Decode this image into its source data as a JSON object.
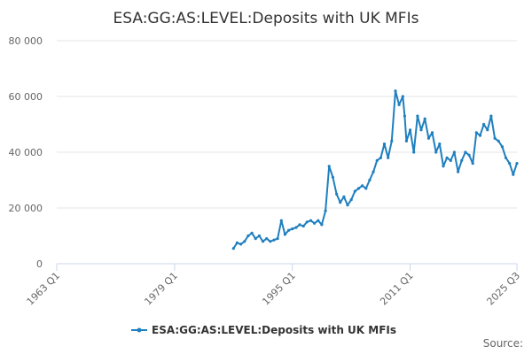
{
  "chart_data": {
    "type": "line",
    "title": "ESA:GG:AS:LEVEL:Deposits with UK MFIs",
    "xlabel": "",
    "ylabel": "",
    "x_range": [
      "1963 Q1",
      "2025 Q3"
    ],
    "ylim": [
      0,
      80000
    ],
    "y_ticks": [
      0,
      20000,
      40000,
      60000,
      80000
    ],
    "y_tick_labels": [
      "0",
      "20 000",
      "40 000",
      "60 000",
      "80 000"
    ],
    "x_tick_labels": [
      "1963 Q1",
      "1979 Q1",
      "1995 Q1",
      "2011 Q1",
      "2025 Q3"
    ],
    "grid": "horizontal",
    "legend_position": "bottom",
    "series": [
      {
        "name": "ESA:GG:AS:LEVEL:Deposits with UK MFIs",
        "color": "#1f7fbf",
        "x": [
          "1987 Q1",
          "1987 Q3",
          "1988 Q1",
          "1988 Q3",
          "1989 Q1",
          "1989 Q3",
          "1990 Q1",
          "1990 Q3",
          "1991 Q1",
          "1991 Q3",
          "1992 Q1",
          "1992 Q3",
          "1993 Q1",
          "1993 Q3",
          "1994 Q1",
          "1994 Q3",
          "1995 Q1",
          "1995 Q3",
          "1996 Q1",
          "1996 Q3",
          "1997 Q1",
          "1997 Q3",
          "1998 Q1",
          "1998 Q3",
          "1999 Q1",
          "1999 Q3",
          "2000 Q1",
          "2000 Q3",
          "2001 Q1",
          "2001 Q3",
          "2002 Q1",
          "2002 Q3",
          "2003 Q1",
          "2003 Q3",
          "2004 Q1",
          "2004 Q3",
          "2005 Q1",
          "2005 Q3",
          "2006 Q1",
          "2006 Q3",
          "2007 Q1",
          "2007 Q3",
          "2008 Q1",
          "2008 Q3",
          "2009 Q1",
          "2009 Q3",
          "2010 Q1",
          "2010 Q2",
          "2010 Q3",
          "2011 Q1",
          "2011 Q3",
          "2012 Q1",
          "2012 Q3",
          "2013 Q1",
          "2013 Q3",
          "2014 Q1",
          "2014 Q3",
          "2015 Q1",
          "2015 Q3",
          "2016 Q1",
          "2016 Q3",
          "2017 Q1",
          "2017 Q3",
          "2018 Q1",
          "2018 Q3",
          "2019 Q1",
          "2019 Q3",
          "2020 Q1",
          "2020 Q3",
          "2021 Q1",
          "2021 Q3",
          "2022 Q1",
          "2022 Q3",
          "2023 Q1",
          "2023 Q3",
          "2024 Q1",
          "2024 Q3",
          "2025 Q1",
          "2025 Q3"
        ],
        "values": [
          5500,
          7500,
          7000,
          8000,
          10000,
          11000,
          9000,
          10000,
          8000,
          9000,
          8000,
          8500,
          9000,
          15500,
          10500,
          12000,
          12500,
          13000,
          14000,
          13500,
          15000,
          15500,
          14500,
          15500,
          14000,
          19000,
          35000,
          31000,
          25000,
          22000,
          24000,
          21000,
          23000,
          26000,
          27000,
          28000,
          27000,
          30000,
          33000,
          37000,
          38000,
          43000,
          38000,
          44000,
          62000,
          57000,
          60000,
          53000,
          44000,
          48000,
          40000,
          53000,
          48000,
          52000,
          45000,
          47000,
          40000,
          43000,
          35000,
          38000,
          37000,
          40000,
          33000,
          37000,
          40000,
          39000,
          36000,
          47000,
          46000,
          50000,
          48000,
          53000,
          45000,
          44000,
          42000,
          38000,
          36000,
          32000,
          36000
        ]
      }
    ],
    "source_label": "Source:"
  }
}
